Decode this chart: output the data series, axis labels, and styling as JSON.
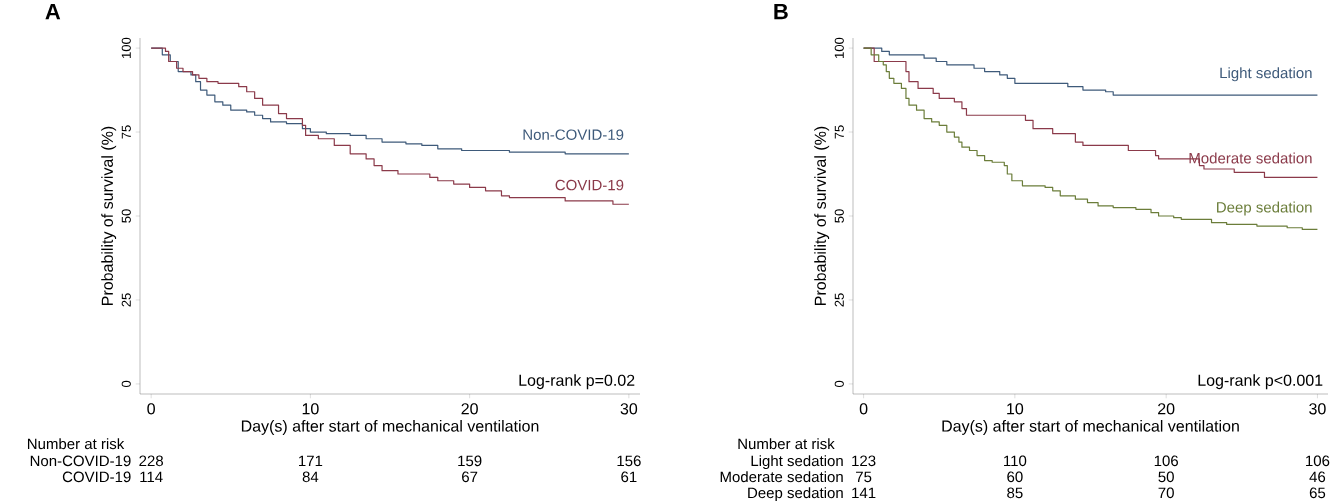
{
  "chart_data": [
    {
      "type": "step",
      "title": "A",
      "xlabel": "Day(s) after start of mechanical ventilation",
      "ylabel": "Probability of survival (%)",
      "xlim": [
        -0.7,
        30.7
      ],
      "ylim": [
        -3,
        103
      ],
      "xticks": [
        0,
        10,
        20,
        30
      ],
      "yticks": [
        0,
        25,
        50,
        75,
        100
      ],
      "grid": false,
      "series": [
        {
          "name": "Non-COVID-19",
          "color": "#3e5a7a",
          "x": [
            0,
            0.7,
            1.2,
            1.7,
            2.5,
            2.8,
            3.1,
            3.5,
            4,
            4.5,
            5,
            6,
            6.5,
            7,
            7.5,
            8.5,
            9.5,
            10,
            11,
            12.5,
            13.5,
            14.5,
            16,
            17,
            18,
            19.5,
            22.5,
            26,
            30
          ],
          "values": [
            100,
            98,
            96,
            93,
            92,
            90,
            87.5,
            86,
            84,
            83,
            81.5,
            81,
            80,
            79,
            78,
            77.5,
            76,
            75,
            74.5,
            74,
            73,
            72,
            71.5,
            71,
            70,
            69.5,
            69,
            68.5,
            68.5
          ]
        },
        {
          "name": "COVID-19",
          "color": "#8b3a4a",
          "x": [
            0,
            0.9,
            1.1,
            1.6,
            2,
            2.6,
            3,
            3.5,
            4.2,
            5.5,
            6,
            6.5,
            7,
            8,
            8.5,
            9.5,
            9.7,
            10.5,
            11.5,
            12.5,
            13.5,
            14,
            14.5,
            15.5,
            17.5,
            18,
            19,
            20,
            21,
            22,
            22.5,
            26,
            29,
            30
          ],
          "values": [
            100,
            99,
            96,
            94,
            93,
            92,
            91,
            90,
            89.5,
            88.5,
            87,
            85,
            83,
            80.5,
            79,
            77,
            74,
            73,
            71,
            68.5,
            67,
            65,
            63.5,
            62.5,
            61.5,
            60.5,
            59.5,
            58.5,
            57.5,
            56,
            55.5,
            54.5,
            53.5,
            53.5
          ]
        }
      ],
      "annotations": [
        "Log-rank p=0.02",
        "Number at risk",
        "Non-COVID-19",
        "228",
        "171",
        "159",
        "156",
        "COVID-19",
        "114",
        "84",
        "67",
        "61"
      ]
    },
    {
      "type": "step",
      "title": "B",
      "xlabel": "Day(s) after start of mechanical ventilation",
      "ylabel": "Probability of survival (%)",
      "xlim": [
        -0.7,
        30.7
      ],
      "ylim": [
        -3,
        103
      ],
      "xticks": [
        0,
        10,
        20,
        30
      ],
      "yticks": [
        0,
        25,
        50,
        75,
        100
      ],
      "grid": false,
      "series": [
        {
          "name": "Light sedation",
          "color": "#3e5a7a",
          "x": [
            0,
            1.2,
            1.7,
            4,
            4.8,
            5.5,
            7.3,
            8,
            9,
            9.5,
            10,
            13.5,
            14.5,
            16,
            16.5,
            30
          ],
          "values": [
            100,
            99,
            98,
            97,
            96,
            95,
            94,
            93,
            92,
            91,
            89.5,
            88.5,
            87.5,
            87,
            86,
            86
          ]
        },
        {
          "name": "Moderate sedation",
          "color": "#8b3a4a",
          "x": [
            0,
            0.7,
            2.8,
            3,
            3.6,
            4.6,
            5,
            6,
            6.5,
            6.8,
            10.7,
            11.2,
            12.5,
            14,
            14.5,
            17.5,
            19.3,
            19.5,
            22.2,
            22.5,
            24.5,
            26.5,
            30
          ],
          "values": [
            100,
            96,
            93,
            90,
            88,
            86.5,
            85,
            84,
            82,
            80,
            78.5,
            76,
            74.5,
            72,
            71,
            69.5,
            68,
            67,
            65,
            64,
            63,
            61.5,
            61.5
          ]
        },
        {
          "name": "Deep sedation",
          "color": "#6b7d3a",
          "x": [
            0,
            0.5,
            1,
            1.3,
            1.5,
            1.7,
            2,
            2.5,
            2.8,
            3,
            3.5,
            4,
            4.5,
            5,
            5.5,
            6,
            6.3,
            6.5,
            7,
            7.5,
            8,
            8.5,
            9.3,
            9.5,
            9.8,
            10.5,
            12,
            12.5,
            13,
            14,
            14.8,
            15.5,
            16.5,
            18,
            19,
            19.5,
            20.5,
            21,
            23,
            24,
            26,
            28,
            29,
            30
          ],
          "values": [
            100,
            98,
            96,
            95,
            93,
            91,
            89.5,
            88,
            85,
            83,
            81.5,
            79,
            78,
            77,
            75,
            73.5,
            72,
            70.5,
            69.5,
            68,
            66.5,
            66,
            65,
            62.5,
            60.5,
            59,
            58.5,
            57.5,
            56,
            55,
            54,
            53,
            52.5,
            52,
            51,
            50,
            49.5,
            49,
            48,
            47.5,
            47,
            46.5,
            46,
            46
          ]
        }
      ],
      "annotations": [
        "Log-rank p<0.001",
        "Number at risk",
        "Light sedation",
        "123",
        "110",
        "106",
        "106",
        "Moderate sedation",
        "75",
        "60",
        "50",
        "46",
        "Deep sedation",
        "141",
        "85",
        "70",
        "65"
      ]
    }
  ]
}
